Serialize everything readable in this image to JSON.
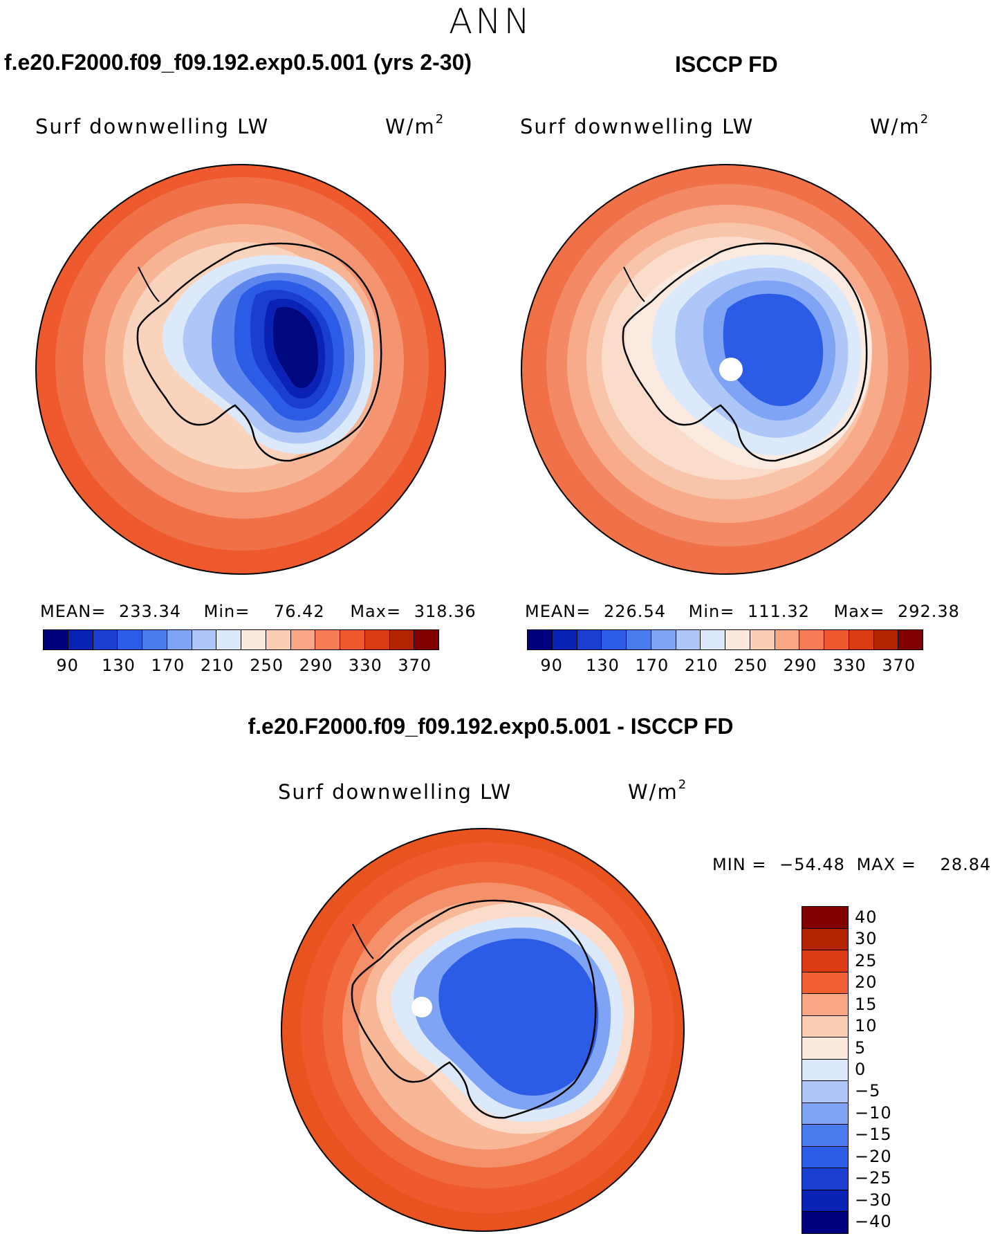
{
  "season": "ANN",
  "panels": {
    "model": {
      "title": "f.e20.F2000.f09_f09.192.exp0.5.001 (yrs 2-30)",
      "variable": "Surf downwelling LW",
      "units": "W/m",
      "units_sup": "2",
      "mean_label": "MEAN=",
      "mean_value": "233.34",
      "min_label": "Min=",
      "min_value": "76.42",
      "max_label": "Max=",
      "max_value": "318.36"
    },
    "obs": {
      "title": "ISCCP FD",
      "variable": "Surf downwelling LW",
      "units": "W/m",
      "units_sup": "2",
      "mean_label": "MEAN=",
      "mean_value": "226.54",
      "min_label": "Min=",
      "min_value": "111.32",
      "max_label": "Max=",
      "max_value": "292.38"
    },
    "diff": {
      "title": "f.e20.F2000.f09_f09.192.exp0.5.001 - ISCCP FD",
      "variable": "Surf downwelling LW",
      "units": "W/m",
      "units_sup": "2",
      "min_label": "MIN =",
      "min_value": "−54.48",
      "max_label": "MAX =",
      "max_value": "28.84"
    }
  },
  "abs_colorbar": {
    "colors": [
      "#00007f",
      "#0a23b4",
      "#1a3fd0",
      "#2c5be6",
      "#4a7cf0",
      "#7fa3f5",
      "#afc7f8",
      "#dbe9fb",
      "#fbe9dd",
      "#fbcdb3",
      "#f8a683",
      "#f57c55",
      "#ee5a2e",
      "#dd3c12",
      "#b42300",
      "#800000"
    ],
    "ticks": [
      "90",
      "130",
      "170",
      "210",
      "250",
      "290",
      "330",
      "370"
    ]
  },
  "diff_colorbar": {
    "colors": [
      "#800000",
      "#b42300",
      "#dd3c12",
      "#f06030",
      "#f8a683",
      "#fbcdb3",
      "#fbe9dd",
      "#dbe9fb",
      "#afc7f8",
      "#7fa3f5",
      "#4a7cf0",
      "#2c5be6",
      "#1a3fd0",
      "#0a23b4",
      "#00007f"
    ],
    "ticks": [
      "40",
      "30",
      "25",
      "20",
      "15",
      "10",
      "5",
      "0",
      "−5",
      "−10",
      "−15",
      "−20",
      "−25",
      "−30",
      "−40"
    ]
  },
  "map_layers": {
    "model": [
      "#f07048",
      "#f49470",
      "#f7b596",
      "#fad3bd",
      "#dbe9fb",
      "#afc7f8",
      "#5c86ee",
      "#2c5be6",
      "#1a3fd0",
      "#0a23b4",
      "#00087f"
    ],
    "obs": [
      "#f38a65",
      "#f7ab8b",
      "#f9c5aa",
      "#fbdccb",
      "#fbeadf",
      "#dbe9fb",
      "#afc7f8",
      "#7fa3f5",
      "#2c5be6",
      "#1a3fd0"
    ],
    "diff": [
      "#ee5a2e",
      "#f06a3e",
      "#f4916b",
      "#f8b898",
      "#fbdccb",
      "#dbe9fb",
      "#7fa3f5",
      "#2c5be6",
      "#1a3fd0",
      "#0a23b4"
    ]
  }
}
